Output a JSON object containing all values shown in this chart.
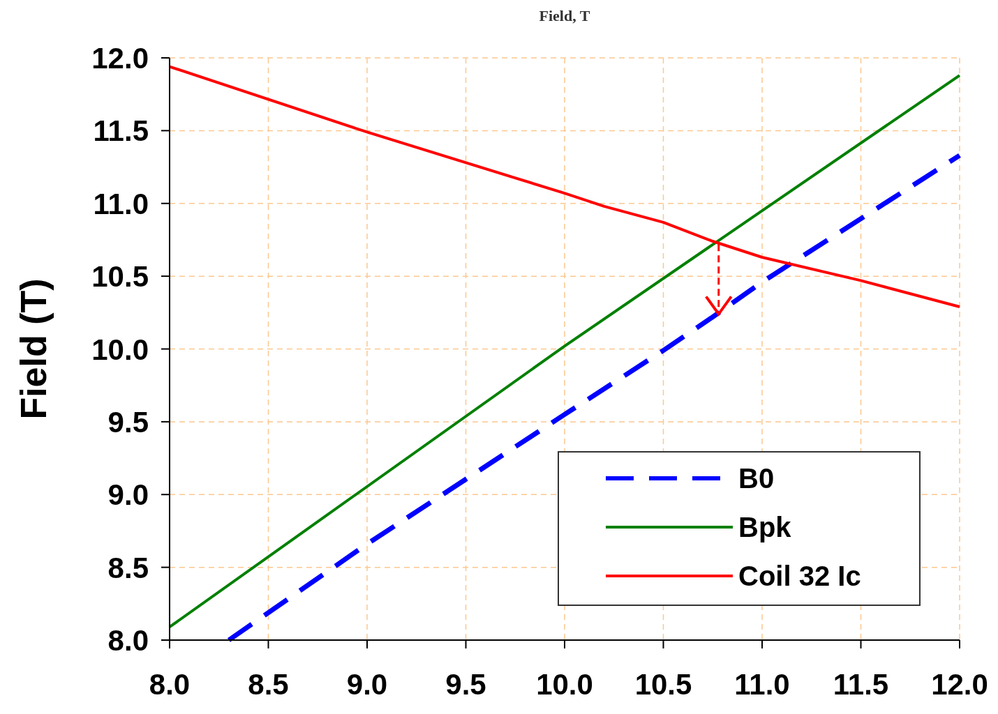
{
  "chart_data": {
    "type": "line",
    "title": "Field, T",
    "ylabel": "Field (T)",
    "xlim": [
      8,
      12
    ],
    "ylim": [
      8,
      12
    ],
    "xticks": [
      {
        "value": 8,
        "label": "8.0"
      },
      8.5,
      {
        "value": 9,
        "label": "9.0"
      },
      9.5,
      {
        "value": 10,
        "label": "10.0"
      },
      10.5,
      {
        "value": 11,
        "label": "11.0"
      },
      11.5,
      {
        "value": 12,
        "label": "12.0"
      }
    ],
    "yticks": [
      {
        "value": 8,
        "label": "8.0"
      },
      8.5,
      {
        "value": 9,
        "label": "9.0"
      },
      9.5,
      {
        "value": 10,
        "label": "10.0"
      },
      10.5,
      {
        "value": 11,
        "label": "11.0"
      },
      11.5,
      {
        "value": 12,
        "label": "12.0"
      }
    ],
    "grid": true,
    "legend": "bottom right",
    "series": [
      {
        "name": "B0",
        "color": "#0000ff",
        "line_style": "dashed",
        "x": [
          8.3,
          9.0,
          10.0,
          10.5,
          10.75,
          11.0,
          12.0
        ],
        "values": [
          8.0,
          8.66,
          9.55,
          9.99,
          10.22,
          10.46,
          11.33
        ]
      },
      {
        "name": "Bpk",
        "color": "#008000",
        "line_style": "solid",
        "x": [
          8.0,
          10.0,
          12.0
        ],
        "values": [
          8.09,
          10.02,
          11.88
        ]
      },
      {
        "name": "Coil 32 Ic",
        "color": "#ff0000",
        "line_style": "solid",
        "x": [
          8.0,
          9.0,
          10.0,
          10.2,
          10.5,
          10.75,
          11.0,
          11.5,
          12.0
        ],
        "values": [
          11.94,
          11.49,
          11.07,
          10.98,
          10.87,
          10.74,
          10.63,
          10.47,
          10.29
        ]
      }
    ]
  }
}
